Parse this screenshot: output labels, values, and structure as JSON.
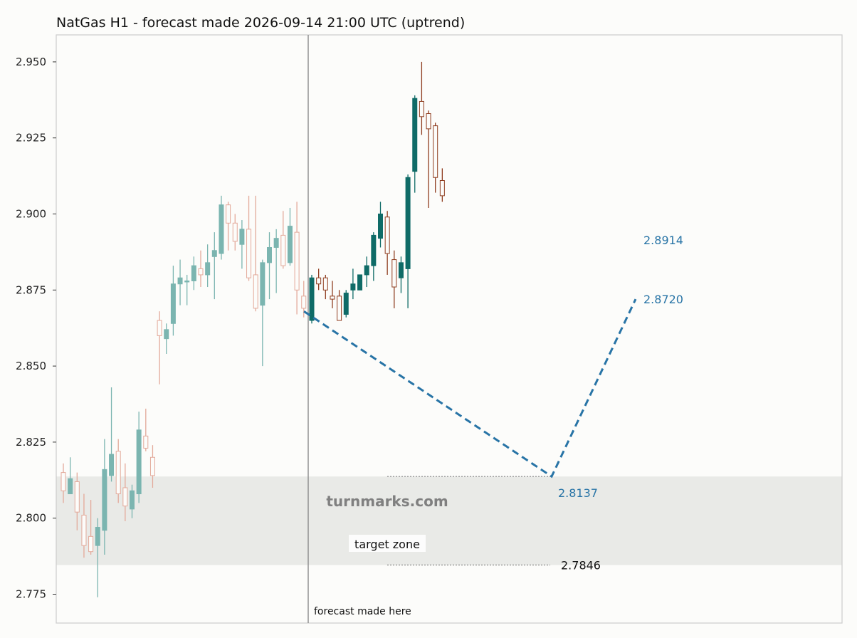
{
  "chart_data": {
    "type": "candlestick",
    "title": "NatGas H1 - forecast made 2026-09-14 21:00 UTC (uptrend)",
    "ylim": [
      2.766,
      2.959
    ],
    "yticks": [
      "2.775",
      "2.800",
      "2.825",
      "2.850",
      "2.875",
      "2.900",
      "2.925",
      "2.950"
    ],
    "colors": {
      "up_history": "#7bb5b0",
      "down_history": "#e3a99a",
      "up_future": "#0f6b67",
      "down_future": "#8f3d1f",
      "forecast_line": "#2874a6",
      "zone_fill": "#e9eae7",
      "divider": "#8a8a8a"
    },
    "history_candles": [
      [
        2.815,
        2.818,
        2.805,
        2.809
      ],
      [
        2.808,
        2.82,
        2.808,
        2.813
      ],
      [
        2.812,
        2.815,
        2.796,
        2.802
      ],
      [
        2.801,
        2.808,
        2.787,
        2.791
      ],
      [
        2.794,
        2.806,
        2.788,
        2.789
      ],
      [
        2.791,
        2.8,
        2.774,
        2.797
      ],
      [
        2.796,
        2.826,
        2.788,
        2.816
      ],
      [
        2.814,
        2.843,
        2.812,
        2.821
      ],
      [
        2.822,
        2.826,
        2.805,
        2.808
      ],
      [
        2.81,
        2.818,
        2.799,
        2.804
      ],
      [
        2.803,
        2.811,
        2.8,
        2.809
      ],
      [
        2.808,
        2.835,
        2.805,
        2.829
      ],
      [
        2.827,
        2.836,
        2.822,
        2.823
      ],
      [
        2.82,
        2.824,
        2.81,
        2.814
      ],
      [
        2.865,
        2.868,
        2.844,
        2.86
      ],
      [
        2.859,
        2.864,
        2.854,
        2.862
      ],
      [
        2.864,
        2.883,
        2.86,
        2.877
      ],
      [
        2.877,
        2.885,
        2.87,
        2.879
      ],
      [
        2.878,
        2.88,
        2.87,
        2.878
      ],
      [
        2.878,
        2.886,
        2.875,
        2.883
      ],
      [
        2.882,
        2.888,
        2.876,
        2.88
      ],
      [
        2.88,
        2.89,
        2.876,
        2.884
      ],
      [
        2.886,
        2.894,
        2.872,
        2.888
      ],
      [
        2.887,
        2.906,
        2.885,
        2.903
      ],
      [
        2.903,
        2.904,
        2.888,
        2.897
      ],
      [
        2.897,
        2.9,
        2.888,
        2.891
      ],
      [
        2.89,
        2.898,
        2.882,
        2.895
      ],
      [
        2.895,
        2.906,
        2.878,
        2.879
      ],
      [
        2.88,
        2.906,
        2.868,
        2.869
      ],
      [
        2.87,
        2.885,
        2.85,
        2.884
      ],
      [
        2.884,
        2.894,
        2.872,
        2.889
      ],
      [
        2.889,
        2.895,
        2.874,
        2.892
      ],
      [
        2.893,
        2.901,
        2.882,
        2.883
      ],
      [
        2.884,
        2.902,
        2.883,
        2.896
      ],
      [
        2.894,
        2.904,
        2.867,
        2.875
      ],
      [
        2.873,
        2.878,
        2.866,
        2.869
      ]
    ],
    "future_candles": [
      [
        2.865,
        2.88,
        2.864,
        2.879
      ],
      [
        2.879,
        2.882,
        2.875,
        2.877
      ],
      [
        2.879,
        2.88,
        2.872,
        2.875
      ],
      [
        2.873,
        2.878,
        2.869,
        2.872
      ],
      [
        2.873,
        2.875,
        2.865,
        2.865
      ],
      [
        2.867,
        2.875,
        2.866,
        2.874
      ],
      [
        2.875,
        2.882,
        2.872,
        2.877
      ],
      [
        2.875,
        2.88,
        2.875,
        2.88
      ],
      [
        2.88,
        2.886,
        2.876,
        2.883
      ],
      [
        2.883,
        2.894,
        2.878,
        2.893
      ],
      [
        2.892,
        2.904,
        2.889,
        2.9
      ],
      [
        2.899,
        2.901,
        2.88,
        2.887
      ],
      [
        2.885,
        2.888,
        2.869,
        2.876
      ],
      [
        2.879,
        2.886,
        2.874,
        2.884
      ],
      [
        2.882,
        2.913,
        2.869,
        2.912
      ],
      [
        2.914,
        2.939,
        2.907,
        2.938
      ],
      [
        2.937,
        2.95,
        2.926,
        2.932
      ],
      [
        2.933,
        2.934,
        2.902,
        2.928
      ],
      [
        2.929,
        2.93,
        2.907,
        2.912
      ],
      [
        2.911,
        2.915,
        2.904,
        2.906
      ]
    ],
    "forecast_path": [
      2.868,
      2.8137,
      2.872
    ],
    "forecast_labels": [
      {
        "value": 2.8914,
        "text": "2.8914"
      },
      {
        "value": 2.872,
        "text": "2.8720"
      },
      {
        "value": 2.8137,
        "text": "2.8137"
      }
    ],
    "target_zone": {
      "low": 2.7846,
      "high": 2.8137,
      "low_label": "2.7846",
      "label": "target zone"
    },
    "divider_label": "forecast made here",
    "watermark": "turnmarks.com"
  }
}
